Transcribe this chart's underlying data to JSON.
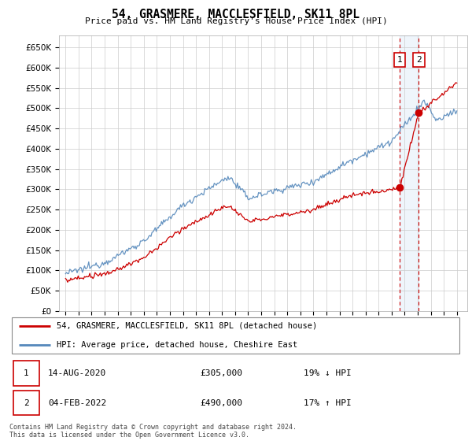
{
  "title": "54, GRASMERE, MACCLESFIELD, SK11 8PL",
  "subtitle": "Price paid vs. HM Land Registry's House Price Index (HPI)",
  "ylim": [
    0,
    680000
  ],
  "yticks": [
    0,
    50000,
    100000,
    150000,
    200000,
    250000,
    300000,
    350000,
    400000,
    450000,
    500000,
    550000,
    600000,
    650000
  ],
  "hpi_color": "#5588bb",
  "sale_color": "#cc0000",
  "annotation_color": "#cc0000",
  "annotation_fill": "#ddeeff",
  "grid_color": "#cccccc",
  "sale1_date": "14-AUG-2020",
  "sale1_price": "£305,000",
  "sale1_hpi": "19% ↓ HPI",
  "sale2_date": "04-FEB-2022",
  "sale2_price": "£490,000",
  "sale2_hpi": "17% ↑ HPI",
  "legend_label1": "54, GRASMERE, MACCLESFIELD, SK11 8PL (detached house)",
  "legend_label2": "HPI: Average price, detached house, Cheshire East",
  "footer": "Contains HM Land Registry data © Crown copyright and database right 2024.\nThis data is licensed under the Open Government Licence v3.0.",
  "sale1_x": 2020.62,
  "sale2_x": 2022.08,
  "sale1_y": 305000,
  "sale2_y": 490000,
  "xlim_left": 1994.5,
  "xlim_right": 2025.8
}
